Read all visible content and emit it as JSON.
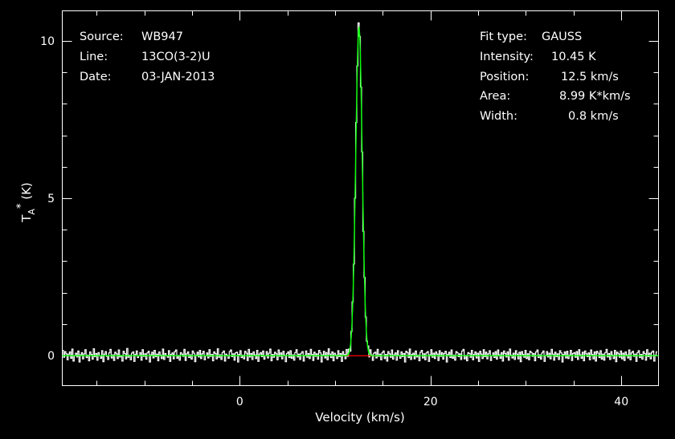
{
  "header": {
    "source_label": "Source:",
    "source_value": "WB947",
    "line_label": "Line:",
    "line_value": "13CO(3-2)U",
    "date_label": "Date:",
    "date_value": "03-JAN-2013"
  },
  "fit": {
    "type_label": "Fit type:",
    "type_value": "GAUSS",
    "intensity_label": "Intensity:",
    "intensity_value": "10.45 K",
    "position_label": "Position:",
    "position_value": "12.5 km/s",
    "area_label": "Area:",
    "area_value": "8.99 K*km/s",
    "width_label": "Width:",
    "width_value": "0.8 km/s"
  },
  "chart_data": {
    "type": "line",
    "xlabel": "Velocity (km/s)",
    "ylabel_main": "T",
    "ylabel_sub": "A",
    "ylabel_sup": "*",
    "ylabel_unit": " (K)",
    "xlim": [
      -18.6,
      43.9
    ],
    "ylim": [
      -0.95,
      10.95
    ],
    "xticks": [
      0,
      20,
      40
    ],
    "xtick_labels": [
      "0",
      "20",
      "40"
    ],
    "yticks": [
      0,
      5,
      10
    ],
    "ytick_labels": [
      "0",
      "5",
      "10"
    ],
    "grid": false,
    "colors": {
      "spectrum": "#ffffff",
      "fit": "#00ff00",
      "baseline": "#ff0000",
      "background": "#000000"
    },
    "series": [
      {
        "style": "histogram",
        "color": "#ffffff",
        "x_start": -18.6,
        "x_step": 0.125,
        "values": [
          0.17,
          -0.05,
          0.13,
          0.06,
          -0.13,
          0.05,
          0.12,
          -0.08,
          0.21,
          -0.17,
          0.0,
          0.08,
          -0.04,
          0.15,
          -0.2,
          0.03,
          0.1,
          -0.1,
          0.06,
          0.19,
          -0.06,
          0.02,
          -0.16,
          0.12,
          0.04,
          -0.11,
          0.22,
          -0.03,
          0.07,
          -0.14,
          0.1,
          0.0,
          -0.08,
          0.16,
          -0.19,
          0.05,
          0.13,
          -0.02,
          -0.12,
          0.09,
          0.2,
          -0.07,
          0.03,
          -0.15,
          0.11,
          0.06,
          -0.09,
          0.18,
          -0.04,
          0.01,
          -0.17,
          0.14,
          0.07,
          -0.1,
          0.23,
          -0.05,
          0.02,
          -0.13,
          0.08,
          0.12,
          -0.18,
          0.04,
          0.15,
          -0.06,
          0.0,
          0.1,
          -0.14,
          0.19,
          -0.02,
          0.06,
          -0.11,
          0.09,
          0.14,
          -0.2,
          0.03,
          0.11,
          -0.07,
          0.17,
          -0.03,
          0.05,
          -0.16,
          0.12,
          0.02,
          -0.09,
          0.21,
          -0.12,
          0.07,
          0.0,
          -0.05,
          0.16,
          -0.18,
          0.04,
          0.09,
          -0.1,
          0.13,
          0.18,
          -0.08,
          0.01,
          -0.14,
          0.1,
          0.05,
          -0.02,
          0.2,
          -0.15,
          0.06,
          0.12,
          -0.06,
          0.03,
          -0.11,
          0.15,
          0.08,
          -0.19,
          0.02,
          0.11,
          -0.04,
          0.17,
          -0.09,
          0.06,
          0.14,
          -0.13,
          0.0,
          0.09,
          -0.07,
          0.19,
          -0.02,
          0.04,
          -0.16,
          0.12,
          0.07,
          -0.1,
          0.22,
          -0.05,
          0.03,
          -0.12,
          0.1,
          0.15,
          -0.17,
          0.05,
          0.01,
          -0.08,
          0.13,
          0.18,
          -0.03,
          0.06,
          -0.14,
          0.09,
          0.11,
          -0.2,
          0.04,
          0.16,
          -0.06,
          0.02,
          -0.1,
          0.14,
          0.08,
          -0.15,
          0.2,
          -0.04,
          0.07,
          -0.12,
          0.12,
          0.03,
          -0.09,
          0.17,
          -0.18,
          0.05,
          0.1,
          -0.03,
          0.15,
          -0.11,
          0.0,
          0.13,
          -0.07,
          0.08,
          0.21,
          -0.16,
          0.04,
          -0.05,
          0.11,
          0.06,
          -0.13,
          0.18,
          -0.02,
          0.09,
          -0.1,
          0.14,
          0.02,
          -0.19,
          0.07,
          0.12,
          -0.06,
          0.16,
          -0.08,
          0.03,
          -0.14,
          0.1,
          0.19,
          -0.04,
          0.05,
          -0.12,
          0.08,
          0.13,
          -0.17,
          0.01,
          0.15,
          -0.05,
          0.07,
          -0.09,
          0.2,
          0.04,
          -0.15,
          0.11,
          -0.02,
          0.06,
          -0.11,
          0.17,
          0.09,
          -0.2,
          0.03,
          0.14,
          -0.07,
          0.1,
          -0.13,
          0.22,
          0.05,
          -0.06,
          0.12,
          -0.16,
          0.08,
          0.02,
          -0.09,
          0.16,
          -0.03,
          0.07,
          -0.18,
          0.13,
          0.04,
          -0.1,
          0.19,
          -0.05,
          0.11,
          -0.14,
          0.06,
          0.15,
          -0.08,
          0.0,
          0.1,
          -0.12,
          0.18,
          0.03,
          -0.06,
          0.09,
          -0.19,
          0.14,
          0.07,
          -0.04,
          0.12,
          -0.1,
          0.17,
          0.02,
          -0.15,
          0.08,
          0.11,
          -0.07,
          0.2,
          -0.02,
          0.05,
          -0.13,
          0.1,
          0.15,
          -0.09,
          0.04,
          -0.17,
          0.13,
          0.06,
          -0.05,
          0.18,
          -0.11,
          0.03,
          0.09,
          -0.14,
          0.16,
          0.01,
          -0.08,
          0.12,
          -0.03,
          0.07,
          -0.2,
          0.14,
          0.1,
          -0.06,
          0.21,
          -0.12,
          0.04,
          0.08,
          -0.1,
          0.15,
          -0.04,
          0.02,
          -0.16,
          0.11,
          0.17,
          -0.07,
          0.06,
          -0.13,
          0.09,
          0.13,
          -0.18,
          0.03,
          0.19,
          -0.05,
          0.08,
          -0.09,
          0.12,
          0.05,
          -0.15,
          0.16,
          -0.02,
          0.1,
          -0.11,
          0.07,
          0.14,
          -0.2,
          0.04,
          0.11,
          -0.06,
          0.18,
          -0.08,
          0.02,
          -0.14,
          0.13,
          0.09,
          -0.03,
          0.06,
          -0.12,
          0.15,
          0.2,
          -0.1,
          0.01,
          -0.16,
          0.1,
          0.07,
          -0.05,
          0.17,
          -0.13,
          0.04,
          0.12,
          -0.07,
          0.08,
          -0.18,
          0.14,
          0.05,
          -0.09,
          0.19,
          -0.03,
          0.11,
          -0.1,
          0.06,
          0.16,
          -0.15,
          0.0,
          0.09,
          -0.06,
          0.13,
          -0.11,
          0.18,
          0.03,
          -0.08,
          0.1,
          -0.17,
          0.15,
          0.07,
          -0.04,
          0.12,
          -0.14,
          0.21,
          0.02,
          -0.07,
          0.08,
          -0.12,
          0.16,
          0.05,
          -0.1,
          0.11,
          -0.19,
          0.13,
          0.04,
          -0.05,
          0.17,
          -0.09,
          0.06,
          -0.13,
          0.14,
          0.1,
          -0.02,
          0.07,
          -0.16,
          0.12,
          0.18,
          -0.06,
          0.03,
          -0.11,
          0.09,
          0.15,
          -0.18,
          0.01,
          0.13,
          -0.04,
          0.08,
          -0.1,
          0.2,
          0.05,
          -0.14,
          0.11,
          -0.03,
          0.06,
          -0.12,
          0.16,
          0.09,
          -0.2,
          0.04,
          0.12,
          -0.07,
          0.14,
          -0.09,
          0.02,
          0.17,
          -0.15,
          0.07,
          0.1,
          -0.05,
          0.13,
          -0.12,
          0.19,
          0.03,
          -0.08,
          0.11,
          -0.16,
          0.15,
          0.06,
          -0.03,
          0.09,
          -0.13,
          0.18,
          0.04,
          -0.1,
          0.12,
          -0.17,
          0.14,
          0.08,
          -0.06,
          0.16,
          -0.11,
          0.05,
          -0.14,
          0.1,
          0.2,
          -0.04,
          0.07,
          -0.12,
          0.13,
          0.02,
          -0.09,
          0.17,
          -0.19,
          0.11,
          0.06,
          -0.05,
          0.15,
          -0.1,
          0.08,
          -0.15,
          0.12,
          0.03,
          -0.07,
          0.18,
          -0.13,
          0.09,
          0.14,
          -0.02,
          0.05,
          -0.18,
          0.1,
          0.16,
          -0.06,
          0.04,
          -0.11,
          0.13,
          0.07,
          -0.14,
          0.19,
          -0.03,
          0.08,
          -0.1,
          0.11,
          0.15,
          -0.17,
          0.02,
          0.12
        ]
      },
      {
        "style": "gaussian-fit",
        "color": "#00ff00",
        "peak": 10.45,
        "center": 12.5,
        "width_fwhm": 0.8,
        "x_range": [
          11.0,
          14.0
        ]
      },
      {
        "style": "baseline-segment",
        "color": "#ff0000",
        "y": 0,
        "x_range": [
          10.7,
          14.6
        ]
      }
    ],
    "peak_noise": [
      {
        "x": 11.8,
        "y": 1.8
      },
      {
        "x": 12.0,
        "y": 6.2
      },
      {
        "x": 12.2,
        "y": 9.1
      },
      {
        "x": 12.35,
        "y": 10.45
      },
      {
        "x": 12.5,
        "y": 10.05
      },
      {
        "x": 12.65,
        "y": 9.4
      },
      {
        "x": 12.8,
        "y": 6.8
      },
      {
        "x": 13.0,
        "y": 3.6
      },
      {
        "x": 13.2,
        "y": 0.9
      }
    ]
  }
}
